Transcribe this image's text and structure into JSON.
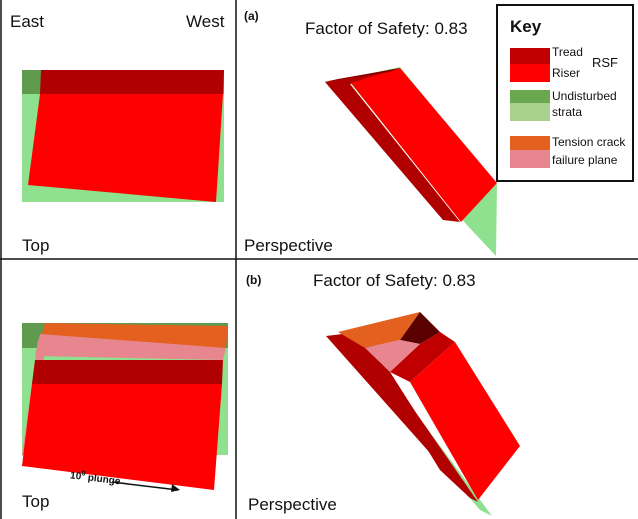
{
  "top_panel_a": {
    "left_label": "East",
    "right_label": "West",
    "bottom_label": "Top"
  },
  "persp_panel_a": {
    "tag": "(a)",
    "title": "Factor of Safety: 0.83",
    "bottom_label": "Perspective"
  },
  "top_panel_b": {
    "bottom_label": "Top",
    "plunge_value": "10",
    "plunge_sup": "0",
    "plunge_text": "plunge"
  },
  "persp_panel_b": {
    "tag": "(b)",
    "title": "Factor of Safety: 0.83",
    "bottom_label": "Perspective"
  },
  "key": {
    "title": "Key",
    "rsf_label": "RSF",
    "entries": [
      {
        "label": "Tread",
        "color": "#c00000"
      },
      {
        "label": "Riser",
        "color": "#ff0000"
      },
      {
        "label": "Undisturbed",
        "color": "#6aa84f"
      },
      {
        "label": "strata",
        "color": "#a9d18e"
      },
      {
        "label": "Tension crack",
        "color": "#e3601f"
      },
      {
        "label": "failure plane",
        "color": "#e88690"
      }
    ]
  },
  "colors": {
    "tread": "#b00000",
    "riser": "#ff0000",
    "strata_dark": "#5f9a4f",
    "strata_light": "#8fe08f",
    "tension": "#e3601f",
    "failure": "#e88690",
    "border": "#111111"
  }
}
